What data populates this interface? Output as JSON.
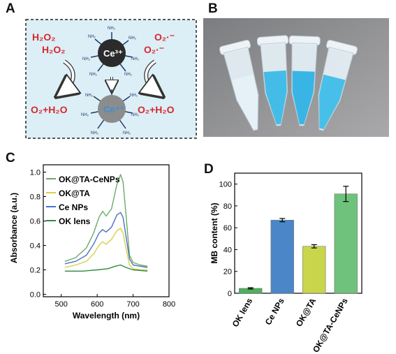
{
  "panels": {
    "a": {
      "letter": "A",
      "left_top": "H₂O₂",
      "left_bottom": "H₂O₂",
      "right_top": "O₂·⁻",
      "right_bottom": "O₂·⁻",
      "np_top_label": "Ce³⁺",
      "np_bottom_label": "Ce⁴⁺",
      "product_left": "O₂+H₂O",
      "product_right": "O₂+H₂O",
      "ligand_label": "NH₂",
      "colors": {
        "reactant": "#d7282f",
        "np_top": "#2b2b2b",
        "np_bottom": "#8c8c8c",
        "ce4_text": "#3a8fd9",
        "background": "#d9eef6"
      }
    },
    "b": {
      "letter": "B",
      "tube_count": 4,
      "tube_colors": [
        "#e6f1f7",
        "#35b8e6",
        "#2ab0e4",
        "#3bbbe8"
      ]
    },
    "c": {
      "letter": "C"
    },
    "d": {
      "letter": "D"
    }
  },
  "chart_data": [
    {
      "panel": "C",
      "type": "line",
      "xlabel": "Wavelength (nm)",
      "ylabel": "Absorbance (a.u.)",
      "xlim": [
        450,
        800
      ],
      "ylim": [
        -0.02,
        1.06
      ],
      "xticks": [
        500,
        600,
        700,
        800
      ],
      "yticks": [
        0.0,
        0.2,
        0.4,
        0.6,
        0.8,
        1.0
      ],
      "ytick_labels": [
        "0.0",
        "0.2",
        "0.4",
        "0.6",
        "0.8",
        "1.0"
      ],
      "legend_position": "top-left",
      "grid": false,
      "series": [
        {
          "name": "OK@TA-CeNPs",
          "color": "#6aaa66",
          "x": [
            510,
            540,
            570,
            590,
            605,
            615,
            625,
            640,
            655,
            665,
            672,
            680,
            690,
            700,
            720,
            740
          ],
          "y": [
            0.27,
            0.3,
            0.38,
            0.5,
            0.63,
            0.68,
            0.64,
            0.7,
            0.9,
            0.98,
            0.92,
            0.66,
            0.32,
            0.26,
            0.24,
            0.23
          ]
        },
        {
          "name": "OK@TA",
          "color": "#d9d04a",
          "x": [
            510,
            540,
            570,
            590,
            605,
            615,
            625,
            640,
            655,
            665,
            672,
            680,
            690,
            700,
            720,
            740
          ],
          "y": [
            0.22,
            0.24,
            0.27,
            0.33,
            0.4,
            0.43,
            0.41,
            0.45,
            0.52,
            0.54,
            0.5,
            0.38,
            0.24,
            0.21,
            0.2,
            0.2
          ]
        },
        {
          "name": "Ce NPs",
          "color": "#4a72c0",
          "x": [
            510,
            540,
            570,
            590,
            605,
            615,
            625,
            640,
            655,
            665,
            672,
            680,
            690,
            700,
            720,
            740
          ],
          "y": [
            0.25,
            0.27,
            0.32,
            0.41,
            0.5,
            0.53,
            0.51,
            0.55,
            0.65,
            0.67,
            0.63,
            0.48,
            0.29,
            0.24,
            0.23,
            0.22
          ]
        },
        {
          "name": "OK lens",
          "color": "#2e8a3e",
          "x": [
            510,
            560,
            600,
            630,
            650,
            665,
            680,
            700,
            740
          ],
          "y": [
            0.19,
            0.19,
            0.2,
            0.21,
            0.23,
            0.24,
            0.22,
            0.2,
            0.19
          ]
        }
      ]
    },
    {
      "panel": "D",
      "type": "bar",
      "ylabel": "MB content (%)",
      "ylim": [
        0,
        110
      ],
      "yticks": [
        0,
        20,
        40,
        60,
        80,
        100
      ],
      "categories": [
        "OK lens",
        "Ce NPs",
        "OK@TA",
        "OK@TA-CeNPs"
      ],
      "values": [
        4.5,
        67,
        43,
        91
      ],
      "errors": [
        0.6,
        1.5,
        1.5,
        7
      ],
      "colors": [
        "#4fb05e",
        "#4a86c8",
        "#c9d64c",
        "#6fc27c"
      ],
      "grid": false
    }
  ]
}
